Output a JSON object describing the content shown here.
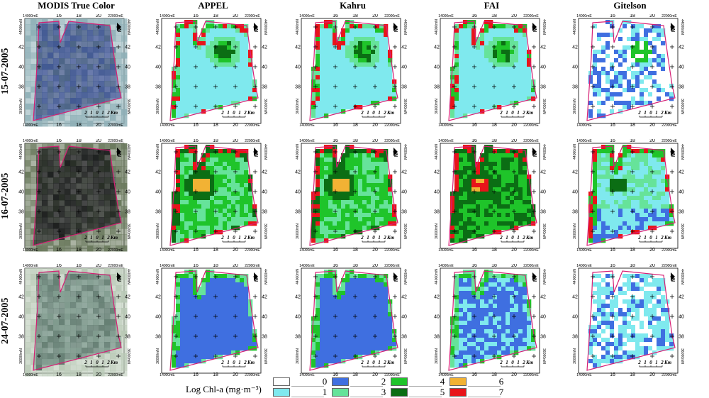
{
  "columns": [
    "MODIS True Color",
    "APPEL",
    "Kahru",
    "FAI",
    "Gitelson"
  ],
  "rows": [
    "15-07-2005",
    "16-07-2005",
    "24-07-2005"
  ],
  "axes": {
    "x_ticks": [
      "14000mE",
      "16",
      "18",
      "20",
      "22000mE"
    ],
    "y_ticks": [
      "44000mN",
      "42",
      "40",
      "38",
      "36000mN"
    ]
  },
  "north_label": "N",
  "scale_bar": {
    "ticks": [
      "2",
      "1",
      "0",
      "1",
      "2"
    ],
    "unit": "Km"
  },
  "legend": {
    "title": "Log Chl-a (mg·m⁻³)",
    "classes": [
      {
        "value": "0",
        "color": "#ffffff"
      },
      {
        "value": "1",
        "color": "#7fe9ee"
      },
      {
        "value": "2",
        "color": "#3f6fe0"
      },
      {
        "value": "3",
        "color": "#66e39a"
      },
      {
        "value": "4",
        "color": "#1fc42a"
      },
      {
        "value": "5",
        "color": "#0b6e14"
      },
      {
        "value": "6",
        "color": "#f2b234"
      },
      {
        "value": "7",
        "color": "#e8141a"
      }
    ]
  },
  "colors": {
    "lake_outline": "#d61f74"
  }
}
